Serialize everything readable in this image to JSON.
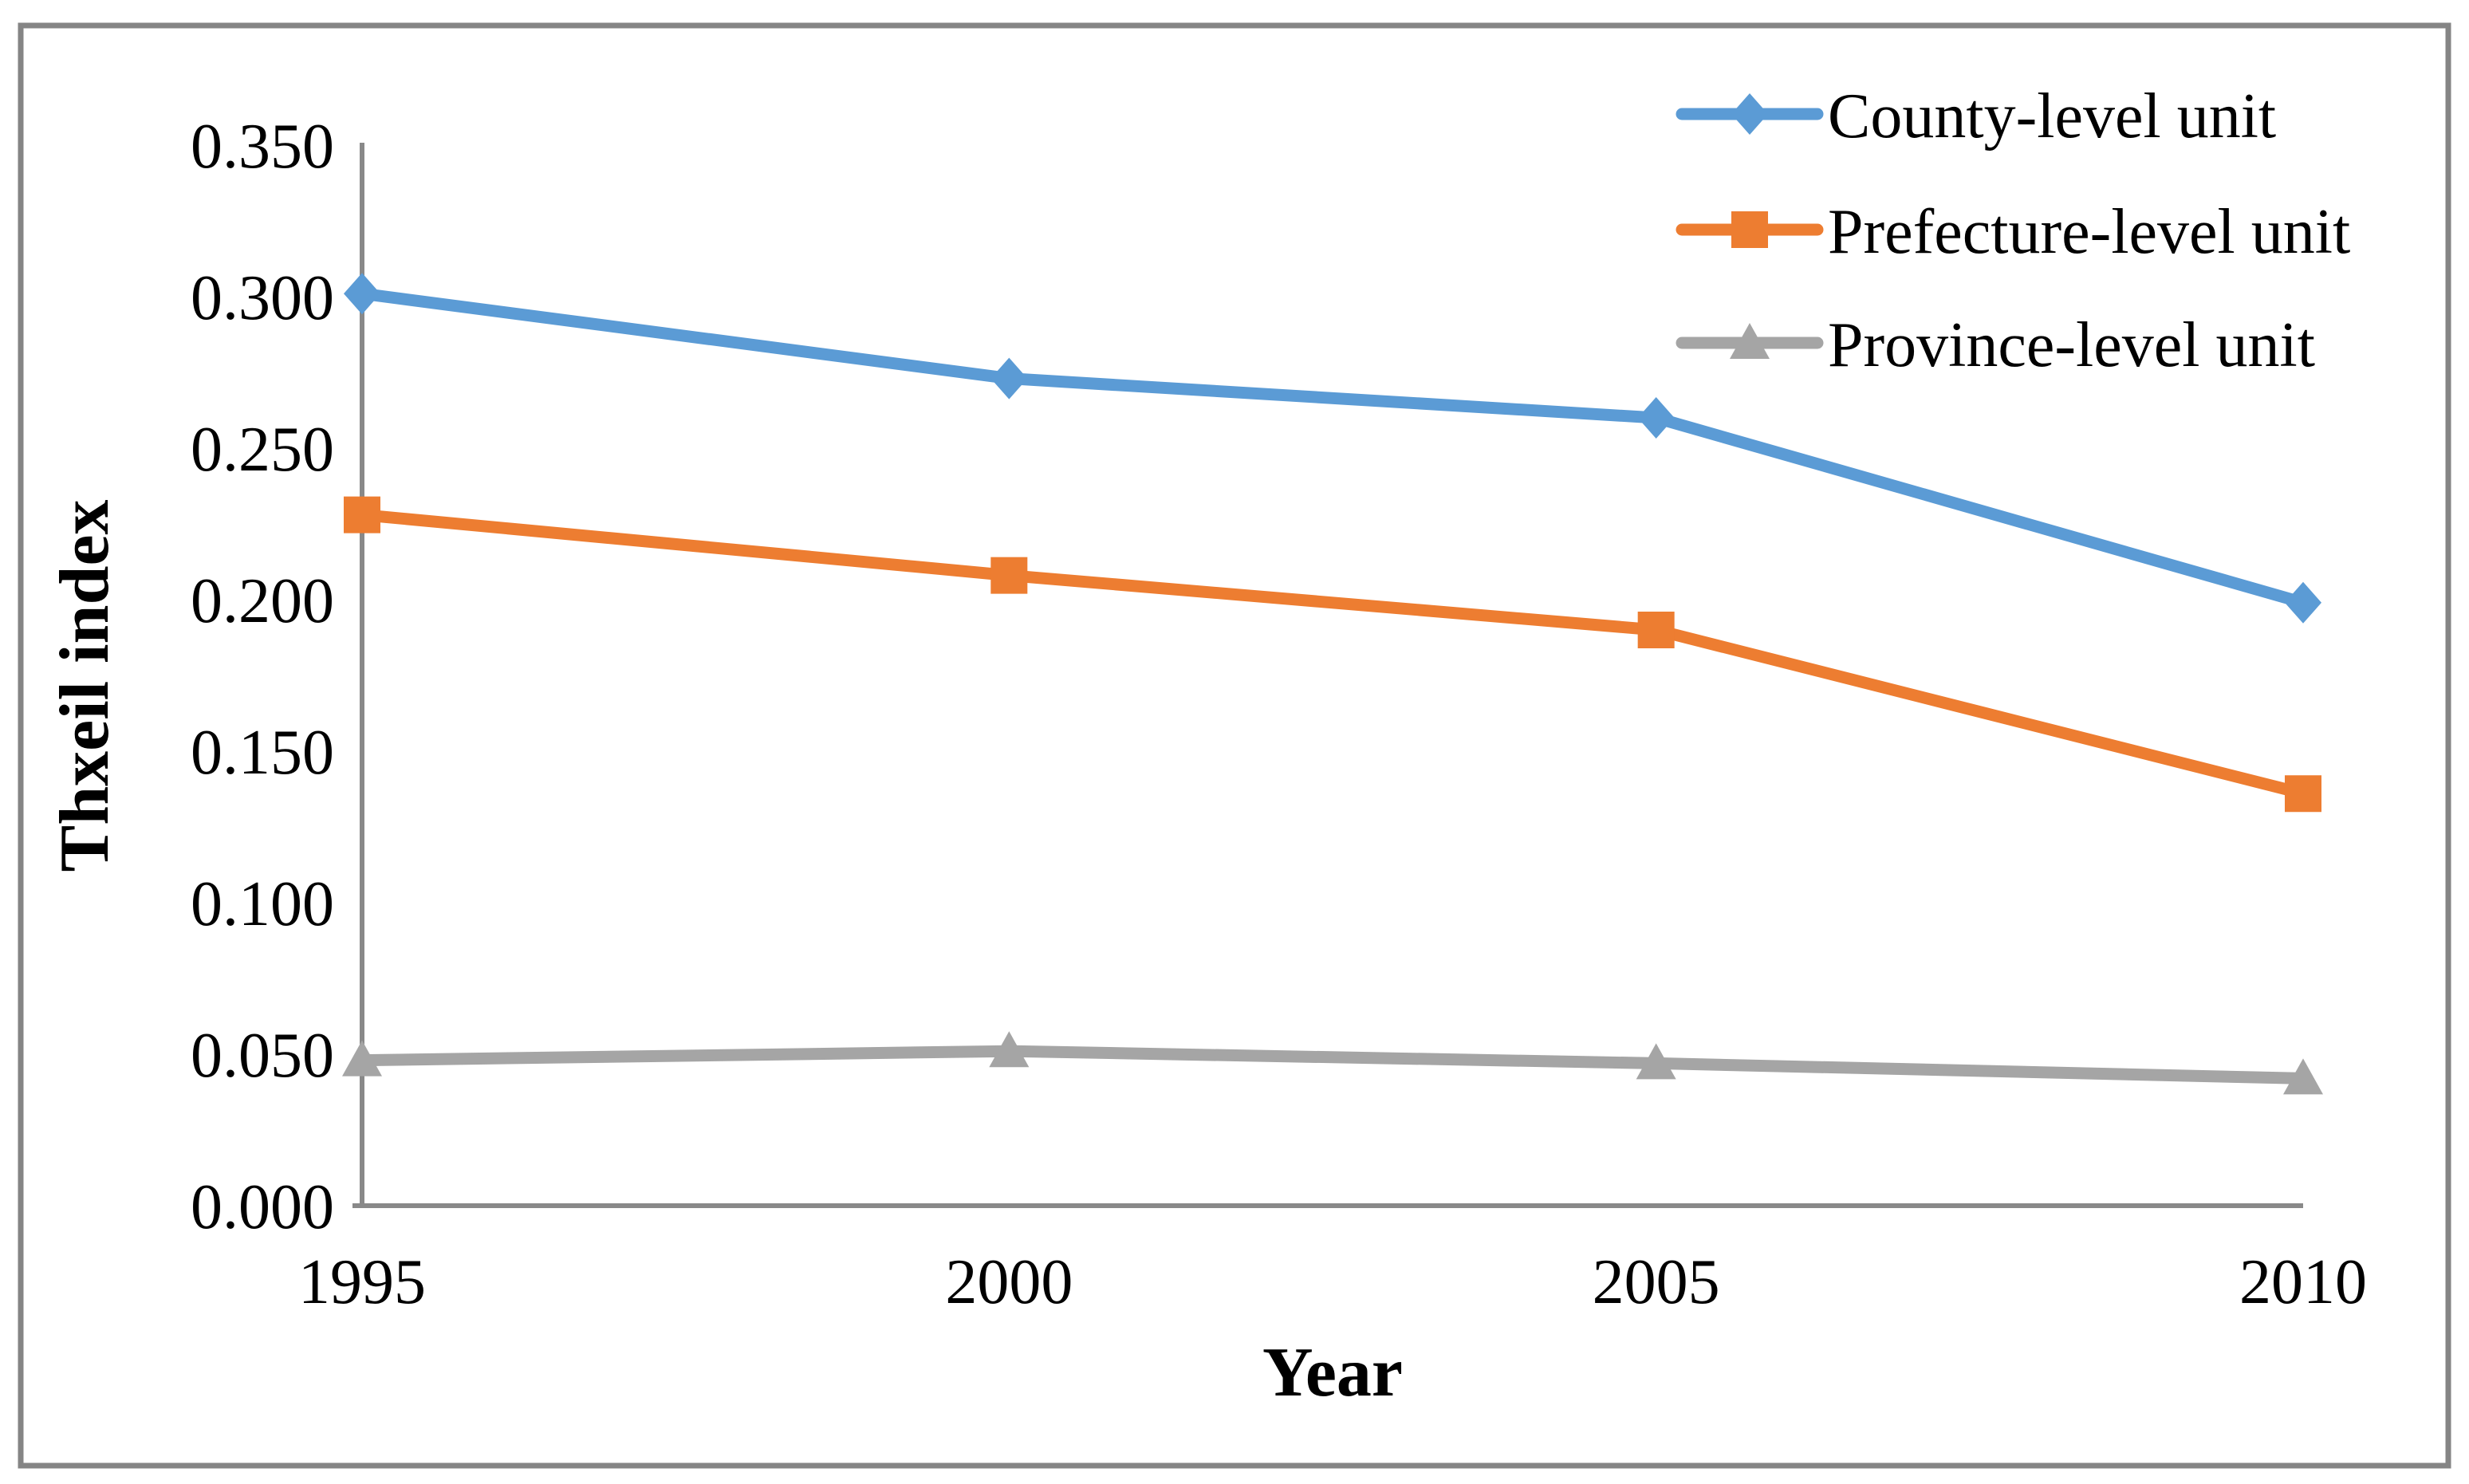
{
  "figure": {
    "background": "#FFFFFF",
    "border_color": "#858585",
    "axis_color": "#898989",
    "text_color": "#000000"
  },
  "chart_data": {
    "type": "line",
    "title": "",
    "xlabel": "Year",
    "ylabel": "Thxeil index",
    "categories": [
      "1995",
      "2000",
      "2005",
      "2010"
    ],
    "y_tick_labels": [
      "0.350",
      "0.300",
      "0.250",
      "0.200",
      "0.150",
      "0.100",
      "0.050",
      "0.000"
    ],
    "ylim": [
      0,
      0.35
    ],
    "y_step": 0.05,
    "grid": false,
    "legend_position": "top-right",
    "series": [
      {
        "name": "County-level unit",
        "color": "#5B9BD5",
        "marker": "diamond",
        "values": [
          0.301,
          0.273,
          0.26,
          0.199
        ]
      },
      {
        "name": "Prefecture-level unit",
        "color": "#ED7D31",
        "marker": "square",
        "values": [
          0.228,
          0.208,
          0.19,
          0.136
        ]
      },
      {
        "name": "Province-level unit",
        "color": "#A5A5A5",
        "marker": "triangle",
        "values": [
          0.048,
          0.051,
          0.047,
          0.042
        ]
      }
    ]
  }
}
